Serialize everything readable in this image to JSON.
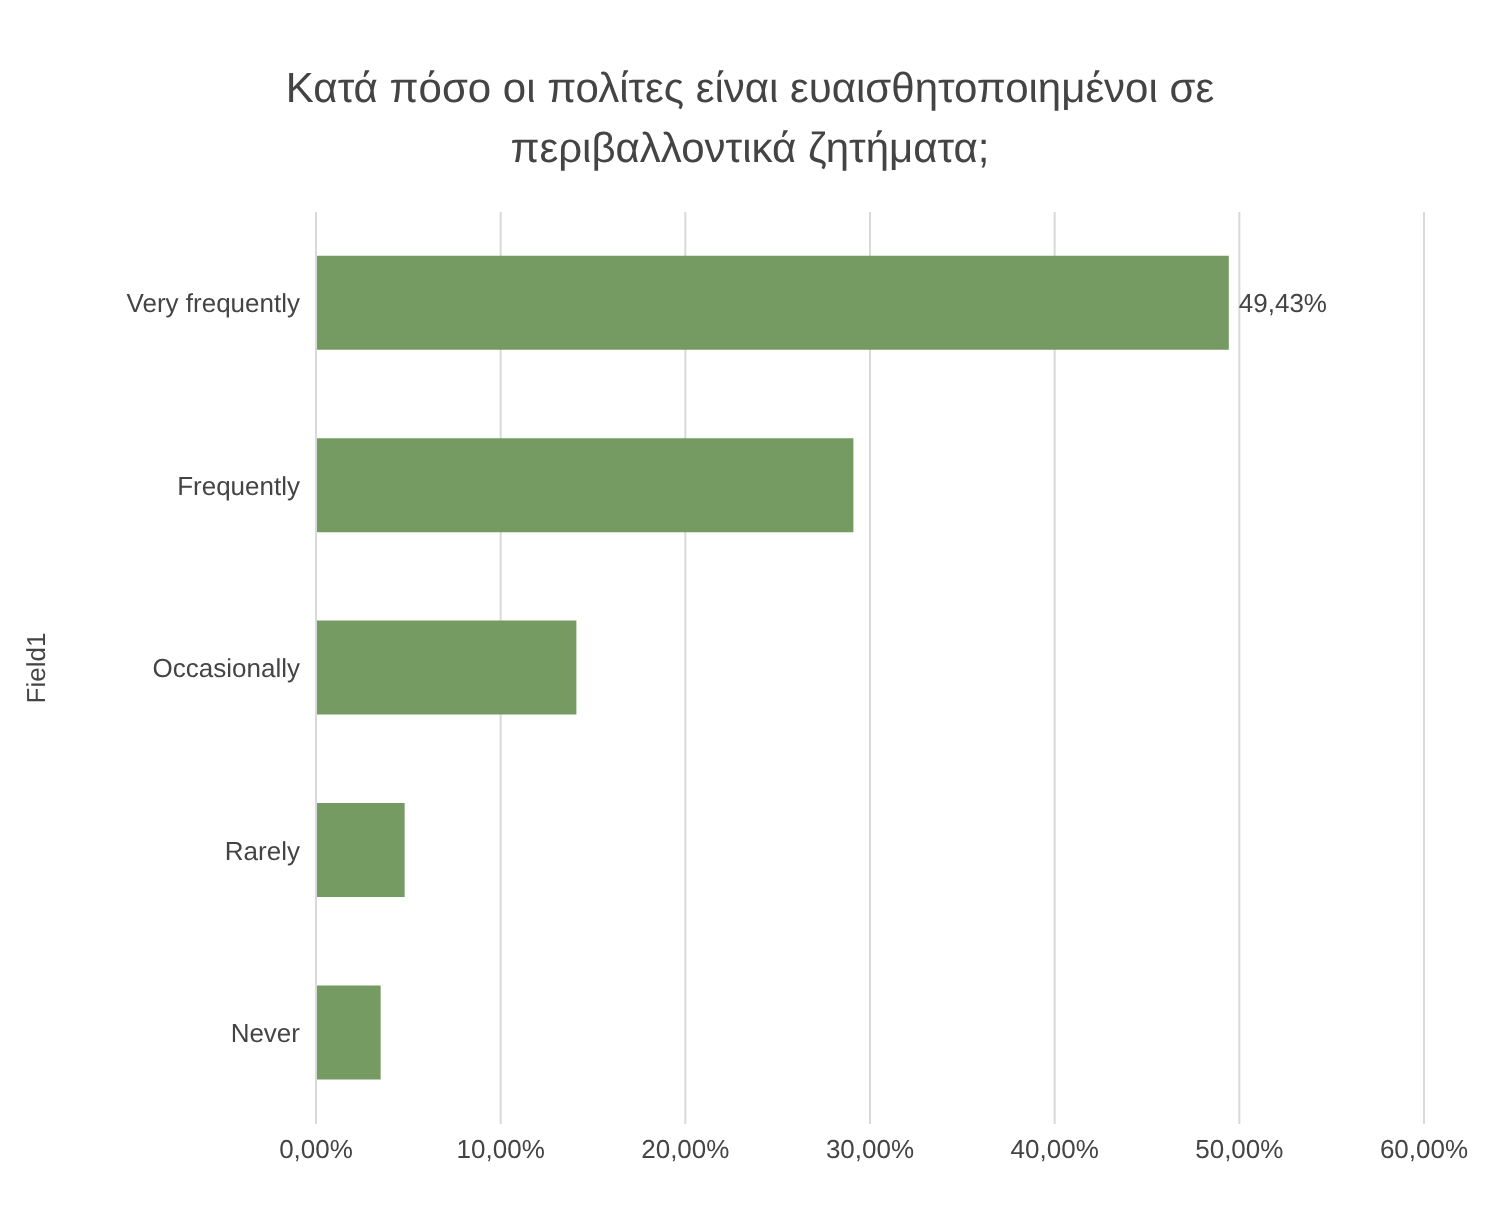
{
  "chart_data": {
    "type": "bar",
    "orientation": "horizontal",
    "title": "Κατά πόσο οι πολίτες είναι ευαισθητοποιημένοι σε περιβαλλοντικά ζητήματα;",
    "ylabel": "Field1",
    "categories": [
      "Very frequently",
      "Frequently",
      "Occasionally",
      "Rarely",
      "Never"
    ],
    "values": [
      49.43,
      29.1,
      14.1,
      4.8,
      3.5
    ],
    "value_labels": [
      "49,43%",
      null,
      null,
      null,
      null
    ],
    "color": "#759a62",
    "xlim": [
      0,
      60
    ],
    "xticks": [
      {
        "value": 0,
        "label": "0,00%"
      },
      {
        "value": 10,
        "label": "10,00%"
      },
      {
        "value": 20,
        "label": "20,00%"
      },
      {
        "value": 30,
        "label": "30,00%"
      },
      {
        "value": 40,
        "label": "40,00%"
      },
      {
        "value": 50,
        "label": "50,00%"
      },
      {
        "value": 60,
        "label": "60,00%"
      }
    ],
    "grid": "x"
  }
}
